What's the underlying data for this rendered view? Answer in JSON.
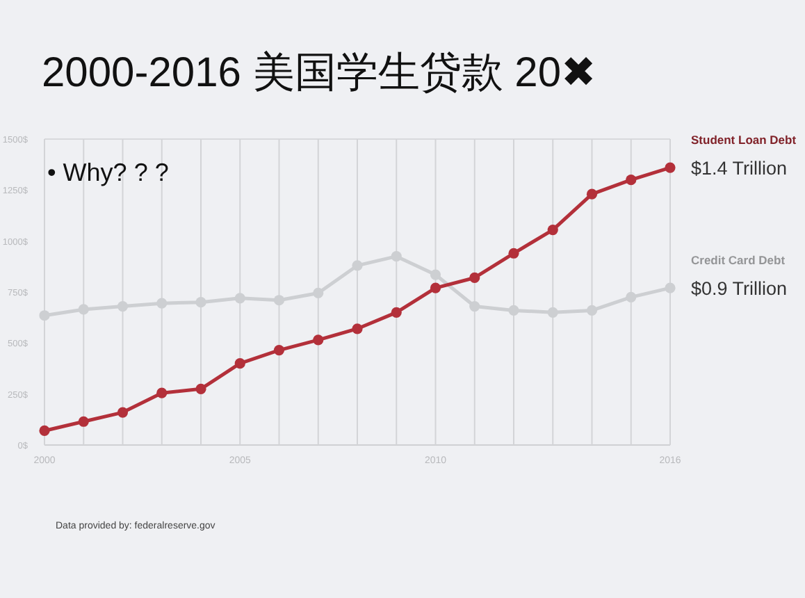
{
  "chart_data": {
    "type": "line",
    "title": "2000-2016 美国学生贷款 20✖",
    "x": [
      2000,
      2001,
      2002,
      2003,
      2004,
      2005,
      2006,
      2007,
      2008,
      2009,
      2010,
      2011,
      2012,
      2013,
      2014,
      2015,
      2016
    ],
    "series": [
      {
        "name": "Student Loan Debt",
        "color": "#b3303a",
        "values": [
          70,
          115,
          160,
          255,
          275,
          400,
          465,
          515,
          570,
          650,
          770,
          820,
          940,
          1055,
          1230,
          1300,
          1360
        ]
      },
      {
        "name": "Credit Card Debt",
        "color": "#cdcfd2",
        "values": [
          635,
          665,
          680,
          695,
          700,
          720,
          710,
          745,
          880,
          925,
          835,
          680,
          660,
          650,
          660,
          725,
          770
        ]
      }
    ],
    "xlim": [
      2000,
      2016
    ],
    "xticks": [
      2000,
      {
        "value": 2001,
        "label": null
      },
      {
        "value": 2002,
        "label": null
      },
      {
        "value": 2003,
        "label": null
      },
      {
        "value": 2004,
        "label": null
      },
      2005,
      {
        "value": 2006,
        "label": null
      },
      {
        "value": 2007,
        "label": null
      },
      {
        "value": 2008,
        "label": null
      },
      {
        "value": 2009,
        "label": null
      },
      2010,
      {
        "value": 2011,
        "label": null
      },
      {
        "value": 2012,
        "label": null
      },
      {
        "value": 2013,
        "label": null
      },
      {
        "value": 2014,
        "label": null
      },
      {
        "value": 2015,
        "label": null
      },
      2016
    ],
    "ylim": [
      0,
      1500
    ],
    "yticks": [
      {
        "value": 0,
        "label": "0$"
      },
      {
        "value": 250,
        "label": "250$"
      },
      {
        "value": 500,
        "label": "500$"
      },
      {
        "value": 750,
        "label": "750$"
      },
      {
        "value": 1000,
        "label": "1000$"
      },
      {
        "value": 1250,
        "label": "1250$"
      },
      {
        "value": 1500,
        "label": "1500$"
      }
    ],
    "grid": "x",
    "legend": false,
    "marker": "circle",
    "line_style": "solid",
    "annotations": [
      "• Why? ? ?",
      {
        "text": "$1.4 Trillion",
        "x": 2016,
        "y": 1360
      },
      {
        "text": "$0.9 Trillion",
        "x": 2016,
        "y": 770
      },
      "Data provided by: federalreserve.gov"
    ]
  }
}
